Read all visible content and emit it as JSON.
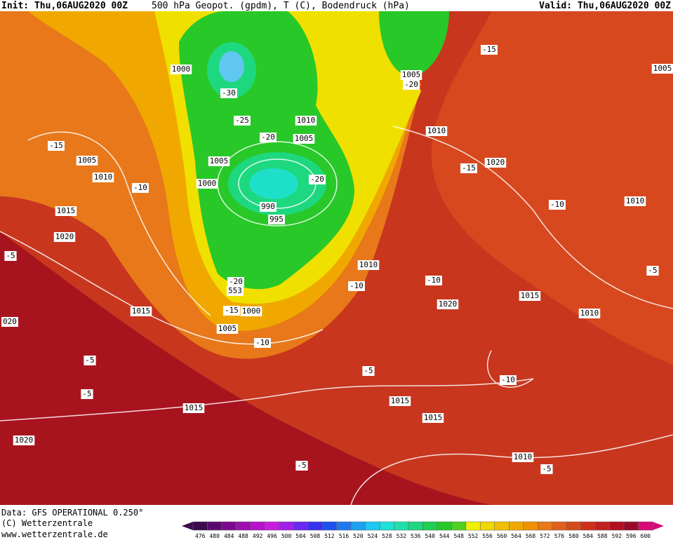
{
  "header": {
    "init": "Init: Thu,06AUG2020 00Z",
    "title": "500 hPa Geopot. (gpdm), T (C), Bodendruck (hPa)",
    "valid": "Valid: Thu,06AUG2020 00Z"
  },
  "footer": {
    "data": "Data: GFS OPERATIONAL 0.250°",
    "copyright": "(C) Wetterzentrale",
    "url": "www.wetterzentrale.de"
  },
  "map_labels": [
    "1000",
    "-30",
    "-25",
    "1010",
    "1005",
    "-20",
    "1005",
    "1000",
    "-20",
    "990",
    "995",
    "1005",
    "-20",
    "-15",
    "1005",
    "1010",
    "-15",
    "1005",
    "1010",
    "-10",
    "-15",
    "1020",
    "1015",
    "1020",
    "1010",
    "-10",
    "-5",
    "1010",
    "-10",
    "-20",
    "553",
    "-10",
    "-5",
    "1015",
    "1020",
    "1010",
    "-15",
    "1000",
    "1015",
    "020",
    "1005",
    "-10",
    "-5",
    "-5",
    "-10",
    "-5",
    "1015",
    "1015",
    "1015",
    "1020",
    "-5",
    "1010",
    "-5"
  ],
  "colorbar": {
    "labels": [
      476,
      480,
      484,
      488,
      492,
      496,
      500,
      504,
      508,
      512,
      516,
      520,
      524,
      528,
      532,
      536,
      540,
      544,
      548,
      552,
      556,
      560,
      564,
      568,
      572,
      576,
      580,
      584,
      588,
      592,
      596,
      600
    ],
    "colors": [
      "#3c0a4e",
      "#5a0a6e",
      "#7a0a8e",
      "#9a10ae",
      "#ba10ce",
      "#c81ee0",
      "#a020e8",
      "#6a28f0",
      "#3a30f0",
      "#1e50f0",
      "#1e78f0",
      "#1ea0f0",
      "#1ec8f0",
      "#1ee0d8",
      "#1ee0a8",
      "#1ed880",
      "#1ed050",
      "#28c828",
      "#50d020",
      "#f0f000",
      "#f0d800",
      "#f0c000",
      "#f0a800",
      "#f09000",
      "#e87818",
      "#e06018",
      "#d84818",
      "#d03018",
      "#c02020",
      "#b01020",
      "#9a0a28",
      "#d80a78"
    ]
  }
}
